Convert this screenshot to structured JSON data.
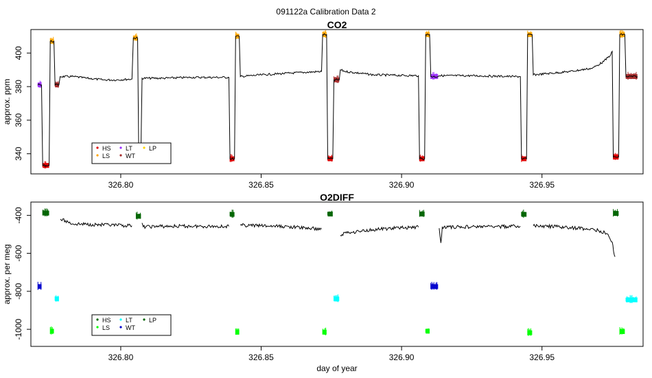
{
  "figure": {
    "title": "091122a   Calibration Data 2"
  },
  "chart_data": [
    {
      "type": "line",
      "title": "CO2",
      "xlabel": "",
      "ylabel": "approx. ppm",
      "xlim": [
        326.768,
        326.986
      ],
      "ylim": [
        328,
        414
      ],
      "xticks": [
        326.8,
        326.85,
        326.9,
        326.95
      ],
      "xtick_labels": [
        "326.80",
        "326.85",
        "326.90",
        "326.95"
      ],
      "yticks": [
        340,
        360,
        380,
        400
      ],
      "ytick_labels": [
        "340",
        "360",
        "380",
        "400"
      ],
      "grid": false,
      "legend_position": "bottom-left",
      "legend": [
        {
          "label": "HS",
          "color": "#dd0000"
        },
        {
          "label": "LS",
          "color": "#ffa500"
        },
        {
          "label": "LT",
          "color": "#9b30ff"
        },
        {
          "label": "WT",
          "color": "#a52a2a"
        },
        {
          "label": "LP",
          "color": "#ffd700"
        }
      ],
      "series": [
        {
          "name": "",
          "color": "#000000",
          "points": [
            [
              326.7705,
              381
            ],
            [
              326.7718,
              381
            ],
            [
              326.7722,
              333
            ],
            [
              326.7745,
              333
            ],
            [
              326.7749,
              407
            ],
            [
              326.7762,
              407
            ],
            [
              326.7766,
              381
            ],
            [
              326.778,
              381
            ],
            [
              326.7784,
              386
            ],
            [
              326.783,
              386
            ],
            [
              326.788,
              385
            ],
            [
              326.794,
              384
            ],
            [
              326.7985,
              384
            ],
            [
              326.804,
              384.5
            ],
            [
              326.8045,
              409
            ],
            [
              326.806,
              409
            ],
            [
              326.8064,
              343
            ],
            [
              326.8072,
              343
            ],
            [
              326.8076,
              385
            ],
            [
              326.815,
              385
            ],
            [
              326.825,
              385.5
            ],
            [
              326.8385,
              385.5
            ],
            [
              326.8389,
              337
            ],
            [
              326.8405,
              337
            ],
            [
              326.8409,
              410
            ],
            [
              326.8422,
              410
            ],
            [
              326.8426,
              386
            ],
            [
              326.85,
              387
            ],
            [
              326.86,
              388
            ],
            [
              326.8715,
              389
            ],
            [
              326.8719,
              411
            ],
            [
              326.8733,
              411
            ],
            [
              326.8737,
              337
            ],
            [
              326.8755,
              337
            ],
            [
              326.8759,
              384
            ],
            [
              326.8778,
              384
            ],
            [
              326.8782,
              390
            ],
            [
              326.88,
              389
            ],
            [
              326.89,
              387
            ],
            [
              326.906,
              386.5
            ],
            [
              326.9064,
              337
            ],
            [
              326.9082,
              337
            ],
            [
              326.9086,
              411
            ],
            [
              326.91,
              411
            ],
            [
              326.9104,
              386
            ],
            [
              326.913,
              386
            ],
            [
              326.9134,
              386.5
            ],
            [
              326.925,
              386.5
            ],
            [
              326.94,
              386
            ],
            [
              326.9423,
              386
            ],
            [
              326.9427,
              337
            ],
            [
              326.9445,
              337
            ],
            [
              326.9449,
              411
            ],
            [
              326.9465,
              411
            ],
            [
              326.9469,
              387
            ],
            [
              326.96,
              389
            ],
            [
              326.968,
              391
            ],
            [
              326.972,
              395
            ],
            [
              326.9745,
              399
            ],
            [
              326.975,
              401
            ],
            [
              326.9754,
              338
            ],
            [
              326.9773,
              338
            ],
            [
              326.9777,
              411
            ],
            [
              326.9795,
              411
            ],
            [
              326.9799,
              386
            ],
            [
              326.984,
              386
            ]
          ]
        }
      ],
      "markers": [
        {
          "label": "LT",
          "color": "#9b30ff",
          "x": [
            326.7705,
            326.7718
          ],
          "y": 381
        },
        {
          "label": "HS",
          "color": "#dd0000",
          "x": [
            326.7722,
            326.7745
          ],
          "y": 333
        },
        {
          "label": "LS",
          "color": "#ffa500",
          "x": [
            326.7749,
            326.7762
          ],
          "y": 407
        },
        {
          "label": "WT",
          "color": "#a52a2a",
          "x": [
            326.7766,
            326.778
          ],
          "y": 381
        },
        {
          "label": "LS",
          "color": "#ffa500",
          "x": [
            326.8045,
            326.806
          ],
          "y": 409
        },
        {
          "label": "HS",
          "color": "#dd0000",
          "x": [
            326.8389,
            326.8405
          ],
          "y": 337
        },
        {
          "label": "LS",
          "color": "#ffa500",
          "x": [
            326.8409,
            326.8422
          ],
          "y": 410
        },
        {
          "label": "LS",
          "color": "#ffa500",
          "x": [
            326.8719,
            326.8733
          ],
          "y": 411
        },
        {
          "label": "HS",
          "color": "#dd0000",
          "x": [
            326.8737,
            326.8755
          ],
          "y": 337
        },
        {
          "label": "WT",
          "color": "#a52a2a",
          "x": [
            326.8759,
            326.8778
          ],
          "y": 384
        },
        {
          "label": "HS",
          "color": "#dd0000",
          "x": [
            326.9064,
            326.9082
          ],
          "y": 337
        },
        {
          "label": "LS",
          "color": "#ffa500",
          "x": [
            326.9086,
            326.91
          ],
          "y": 411
        },
        {
          "label": "LT",
          "color": "#9b30ff",
          "x": [
            326.9104,
            326.913
          ],
          "y": 386
        },
        {
          "label": "HS",
          "color": "#dd0000",
          "x": [
            326.9427,
            326.9445
          ],
          "y": 337
        },
        {
          "label": "LS",
          "color": "#ffa500",
          "x": [
            326.9449,
            326.9465
          ],
          "y": 411
        },
        {
          "label": "HS",
          "color": "#dd0000",
          "x": [
            326.9754,
            326.9773
          ],
          "y": 338
        },
        {
          "label": "LS",
          "color": "#ffa500",
          "x": [
            326.9777,
            326.9795
          ],
          "y": 411
        },
        {
          "label": "WT",
          "color": "#a52a2a",
          "x": [
            326.9799,
            326.984
          ],
          "y": 386
        }
      ]
    },
    {
      "type": "line",
      "title": "O2DIFF",
      "xlabel": "day of year",
      "ylabel": "approx. per meg",
      "xlim": [
        326.768,
        326.986
      ],
      "ylim": [
        -1090,
        -330
      ],
      "xticks": [
        326.8,
        326.85,
        326.9,
        326.95
      ],
      "xtick_labels": [
        "326.80",
        "326.85",
        "326.90",
        "326.95"
      ],
      "yticks": [
        -1000,
        -800,
        -600,
        -400
      ],
      "ytick_labels": [
        "-1000",
        "-800",
        "-600",
        "-400"
      ],
      "grid": false,
      "legend_position": "bottom-left",
      "legend": [
        {
          "label": "HS",
          "color": "#006400"
        },
        {
          "label": "LS",
          "color": "#00ff00"
        },
        {
          "label": "LT",
          "color": "#00ffff"
        },
        {
          "label": "WT",
          "color": "#0000cd"
        },
        {
          "label": "LP",
          "color": "#006400"
        }
      ],
      "series": [
        {
          "name": "",
          "color": "#000000",
          "segments": [
            [
              [
                326.7785,
                -420
              ],
              [
                326.783,
                -445
              ],
              [
                326.79,
                -448
              ],
              [
                326.796,
                -452
              ],
              [
                326.804,
                -455
              ]
            ],
            [
              [
                326.8076,
                -440
              ],
              [
                326.808,
                -460
              ],
              [
                326.815,
                -458
              ],
              [
                326.825,
                -457
              ],
              [
                326.8385,
                -458
              ]
            ],
            [
              [
                326.8426,
                -452
              ],
              [
                326.85,
                -455
              ],
              [
                326.86,
                -460
              ],
              [
                326.8715,
                -473
              ]
            ],
            [
              [
                326.8782,
                -505
              ],
              [
                326.88,
                -492
              ],
              [
                326.89,
                -475
              ],
              [
                326.9,
                -465
              ],
              [
                326.906,
                -462
              ]
            ],
            [
              [
                326.9134,
                -468
              ],
              [
                326.914,
                -545
              ],
              [
                326.9145,
                -462
              ],
              [
                326.925,
                -460
              ],
              [
                326.935,
                -459
              ],
              [
                326.9423,
                -458
              ]
            ],
            [
              [
                326.9469,
                -455
              ],
              [
                326.955,
                -460
              ],
              [
                326.965,
                -470
              ],
              [
                326.97,
                -478
              ],
              [
                326.9735,
                -500
              ],
              [
                326.975,
                -540
              ],
              [
                326.9755,
                -590
              ],
              [
                326.976,
                -618
              ]
            ]
          ]
        }
      ],
      "markers": [
        {
          "label": "WT",
          "color": "#0000cd",
          "x": [
            326.7705,
            326.7718
          ],
          "y": -775
        },
        {
          "label": "HS",
          "color": "#006400",
          "x": [
            326.7722,
            326.7745
          ],
          "y": -388
        },
        {
          "label": "LS",
          "color": "#00ff00",
          "x": [
            326.7749,
            326.7762
          ],
          "y": -1010
        },
        {
          "label": "LT",
          "color": "#00ffff",
          "x": [
            326.7766,
            326.778
          ],
          "y": -840
        },
        {
          "label": "HS",
          "color": "#006400",
          "x": [
            326.8055,
            326.8072
          ],
          "y": -405
        },
        {
          "label": "HS",
          "color": "#006400",
          "x": [
            326.8389,
            326.8405
          ],
          "y": -395
        },
        {
          "label": "LS",
          "color": "#00ff00",
          "x": [
            326.8409,
            326.8422
          ],
          "y": -1015
        },
        {
          "label": "LS",
          "color": "#00ff00",
          "x": [
            326.8719,
            326.8733
          ],
          "y": -1015
        },
        {
          "label": "HS",
          "color": "#006400",
          "x": [
            326.8737,
            326.8755
          ],
          "y": -393
        },
        {
          "label": "LT",
          "color": "#00ffff",
          "x": [
            326.8759,
            326.8778
          ],
          "y": -840
        },
        {
          "label": "HS",
          "color": "#006400",
          "x": [
            326.9064,
            326.9082
          ],
          "y": -393
        },
        {
          "label": "LS",
          "color": "#00ff00",
          "x": [
            326.9086,
            326.91
          ],
          "y": -1010
        },
        {
          "label": "WT",
          "color": "#0000cd",
          "x": [
            326.9104,
            326.913
          ],
          "y": -775
        },
        {
          "label": "HS",
          "color": "#006400",
          "x": [
            326.9427,
            326.9445
          ],
          "y": -395
        },
        {
          "label": "LS",
          "color": "#00ff00",
          "x": [
            326.9449,
            326.9465
          ],
          "y": -1018
        },
        {
          "label": "HS",
          "color": "#006400",
          "x": [
            326.9754,
            326.9773
          ],
          "y": -390
        },
        {
          "label": "LS",
          "color": "#00ff00",
          "x": [
            326.9777,
            326.9795
          ],
          "y": -1012
        },
        {
          "label": "LT",
          "color": "#00ffff",
          "x": [
            326.9799,
            326.984
          ],
          "y": -845
        }
      ]
    }
  ]
}
